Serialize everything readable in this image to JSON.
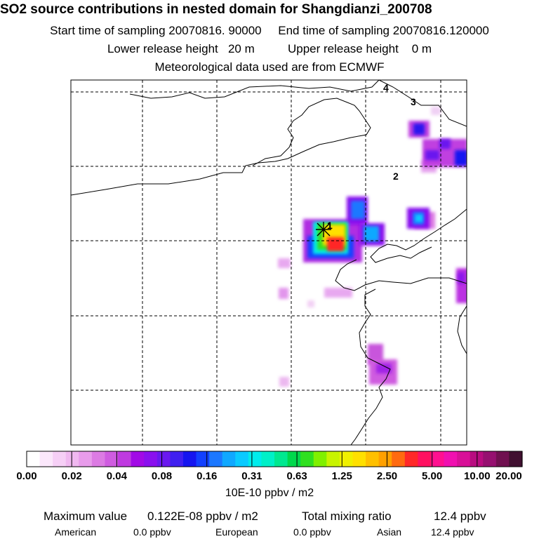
{
  "header": {
    "title": "SO2 source contributions in nested domain for Shangdianzi_200708",
    "start_label": "Start time of sampling 20070816. 90000",
    "end_label": "End time of sampling 20070816.120000",
    "lower_label": "Lower release height   20 m",
    "upper_label": "Upper release height    0 m",
    "met_label": "Meteorological data used are from ECMWF"
  },
  "map": {
    "region_labels": [
      "1",
      "2",
      "3",
      "4"
    ]
  },
  "chart_data": {
    "type": "heatmap",
    "title": "SO2 source contributions in nested domain for Shangdianzi_200708",
    "colorbar_unit": "10E-10 ppbv / m2",
    "colorbar_ticks": [
      "0.00",
      "0.02",
      "0.04",
      "0.08",
      "0.16",
      "0.31",
      "0.63",
      "1.25",
      "2.50",
      "5.00",
      "10.00",
      "20.00"
    ],
    "colorbar_colors": [
      "#ffffff",
      "#fbe7fb",
      "#f6cff6",
      "#f0b8f0",
      "#e89ceb",
      "#dc7be3",
      "#cf5ce0",
      "#bf3ae0",
      "#a20ae6",
      "#8a10ee",
      "#6a18ef",
      "#4020f0",
      "#1515f0",
      "#1240ff",
      "#1c78ff",
      "#10a8ff",
      "#0acaff",
      "#00ecec",
      "#00f0c8",
      "#00e890",
      "#00d84c",
      "#30e020",
      "#80f000",
      "#c8f400",
      "#f0f000",
      "#ffe000",
      "#ffc000",
      "#ffa000",
      "#ff6a10",
      "#ff2828",
      "#ff1060",
      "#ff1090",
      "#f010b0",
      "#d81098",
      "#b80c80",
      "#961070",
      "#701050",
      "#401030"
    ]
  },
  "footer": {
    "max_label": "Maximum value",
    "max_value": "0.122E-08 ppbv / m2",
    "total_label": "Total mixing ratio",
    "total_value": "12.4 ppbv",
    "american_label": "American",
    "american_value": "0.0 ppbv",
    "european_label": "European",
    "european_value": "0.0 ppbv",
    "asian_label": "Asian",
    "asian_value": "12.4 ppbv"
  }
}
